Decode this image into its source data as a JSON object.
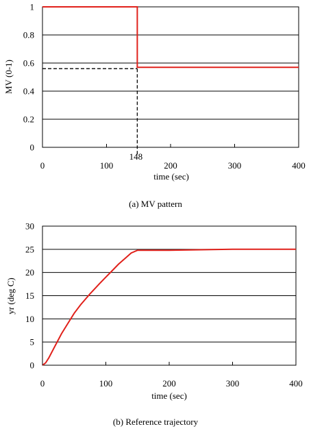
{
  "chart_data": [
    {
      "type": "line",
      "caption": "(a) MV pattern",
      "xlabel": "time (sec)",
      "ylabel": "MV (0-1)",
      "xlim": [
        0,
        400
      ],
      "ylim": [
        0,
        1
      ],
      "x_ticks": [
        "0",
        "100",
        "200",
        "300",
        "400"
      ],
      "y_ticks": [
        "0",
        "0.2",
        "0.4",
        "0.6",
        "0.8",
        "1"
      ],
      "grid": "horizontal",
      "series_color": "#e0201a",
      "series": [
        {
          "x": [
            0,
            148,
            148,
            400
          ],
          "y": [
            1,
            1,
            0.57,
            0.57
          ]
        }
      ],
      "annotations": [
        {
          "label": "148",
          "x": 148,
          "y": 0.56
        }
      ]
    },
    {
      "type": "line",
      "caption": "(b) Reference trajectory",
      "xlabel": "time (sec)",
      "ylabel": "yr (deg C)",
      "xlim": [
        0,
        400
      ],
      "ylim": [
        0,
        30
      ],
      "x_ticks": [
        "0",
        "100",
        "200",
        "300",
        "400"
      ],
      "y_ticks": [
        "0",
        "5",
        "10",
        "15",
        "20",
        "25",
        "30"
      ],
      "grid": "horizontal",
      "series_color": "#e0201a",
      "series": [
        {
          "x": [
            0,
            5,
            10,
            20,
            30,
            40,
            50,
            60,
            75,
            90,
            100,
            110,
            120,
            130,
            140,
            150,
            200,
            250,
            300,
            350,
            400
          ],
          "y": [
            0,
            0.5,
            1.6,
            4.2,
            6.8,
            9.0,
            11.2,
            13.0,
            15.4,
            17.6,
            19.0,
            20.4,
            21.8,
            23.0,
            24.2,
            24.8,
            24.8,
            24.9,
            25.0,
            25.0,
            25.0
          ]
        }
      ]
    }
  ]
}
